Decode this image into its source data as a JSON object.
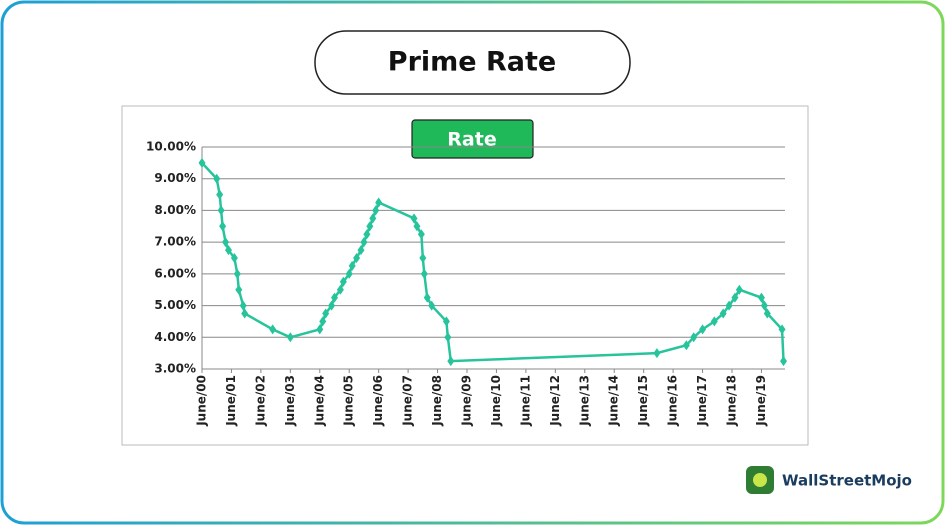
{
  "chart_data": {
    "type": "line",
    "title": "Prime Rate",
    "x": [
      2000.5,
      2001.0,
      2001.1,
      2001.15,
      2001.2,
      2001.3,
      2001.4,
      2001.6,
      2001.7,
      2001.75,
      2001.9,
      2001.95,
      2002.9,
      2003.5,
      2004.5,
      2004.6,
      2004.7,
      2004.9,
      2005.0,
      2005.2,
      2005.3,
      2005.5,
      2005.6,
      2005.75,
      2005.9,
      2006.0,
      2006.1,
      2006.2,
      2006.3,
      2006.4,
      2006.5,
      2007.7,
      2007.8,
      2007.95,
      2008.0,
      2008.05,
      2008.15,
      2008.3,
      2008.8,
      2008.85,
      2008.95,
      2015.95,
      2016.95,
      2017.2,
      2017.5,
      2017.9,
      2018.2,
      2018.4,
      2018.6,
      2018.75,
      2019.5,
      2019.6,
      2019.7,
      2020.2,
      2020.25
    ],
    "series": [
      {
        "name": "Rate",
        "color": "#27c49c",
        "values": [
          9.5,
          9.0,
          8.5,
          8.0,
          7.5,
          7.0,
          6.75,
          6.5,
          6.0,
          5.5,
          5.0,
          4.75,
          4.25,
          4.0,
          4.25,
          4.5,
          4.75,
          5.0,
          5.25,
          5.5,
          5.75,
          6.0,
          6.25,
          6.5,
          6.75,
          7.0,
          7.25,
          7.5,
          7.75,
          8.0,
          8.25,
          7.75,
          7.5,
          7.25,
          6.5,
          6.0,
          5.25,
          5.0,
          4.5,
          4.0,
          3.25,
          3.5,
          3.75,
          4.0,
          4.25,
          4.5,
          4.75,
          5.0,
          5.25,
          5.5,
          5.25,
          5.0,
          4.75,
          4.25,
          3.25
        ]
      }
    ],
    "xlim": [
      2000.5,
      2020.3
    ],
    "xticks": [
      {
        "value": 2000.5,
        "label": "June/00"
      },
      {
        "value": 2001.5,
        "label": "June/01"
      },
      {
        "value": 2002.5,
        "label": "June/02"
      },
      {
        "value": 2003.5,
        "label": "June/03"
      },
      {
        "value": 2004.5,
        "label": "June/04"
      },
      {
        "value": 2005.5,
        "label": "June/05"
      },
      {
        "value": 2006.5,
        "label": "June/06"
      },
      {
        "value": 2007.5,
        "label": "June/07"
      },
      {
        "value": 2008.5,
        "label": "June/08"
      },
      {
        "value": 2009.5,
        "label": "June/09"
      },
      {
        "value": 2010.5,
        "label": "June/10"
      },
      {
        "value": 2011.5,
        "label": "June/11"
      },
      {
        "value": 2012.5,
        "label": "June/12"
      },
      {
        "value": 2013.5,
        "label": "June/13"
      },
      {
        "value": 2014.5,
        "label": "June/14"
      },
      {
        "value": 2015.5,
        "label": "June/15"
      },
      {
        "value": 2016.5,
        "label": "June/16"
      },
      {
        "value": 2017.5,
        "label": "June/17"
      },
      {
        "value": 2018.5,
        "label": "June/18"
      },
      {
        "value": 2019.5,
        "label": "June/19"
      }
    ],
    "ylim": [
      3,
      10
    ],
    "yticks": [
      {
        "value": 3,
        "label": "3.00%"
      },
      {
        "value": 4,
        "label": "4.00%"
      },
      {
        "value": 5,
        "label": "5.00%"
      },
      {
        "value": 6,
        "label": "6.00%"
      },
      {
        "value": 7,
        "label": "7.00%"
      },
      {
        "value": 8,
        "label": "8.00%"
      },
      {
        "value": 9,
        "label": "9.00%"
      },
      {
        "value": 10,
        "label": "10.00%"
      }
    ],
    "grid": true
  },
  "brand": "WallStreetMojo"
}
